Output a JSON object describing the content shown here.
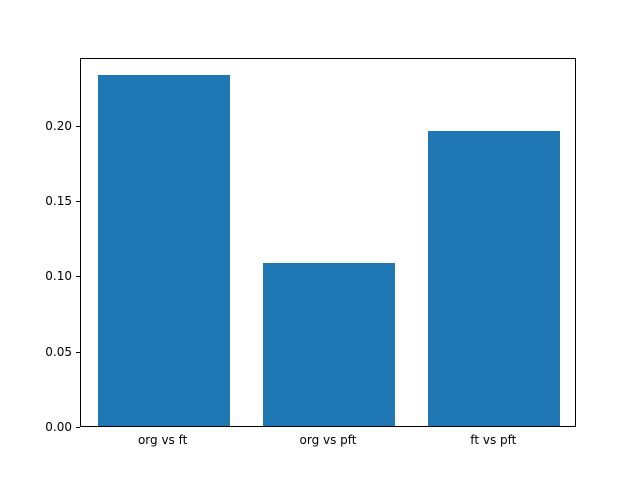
{
  "chart_data": {
    "type": "bar",
    "title": "",
    "xlabel": "",
    "ylabel": "",
    "categories": [
      "org vs ft",
      "org vs pft",
      "ft vs pft"
    ],
    "values": [
      0.233,
      0.108,
      0.196
    ],
    "ylim": [
      0,
      0.245
    ],
    "yticks": [
      0.0,
      0.05,
      0.1,
      0.15,
      0.2
    ],
    "ytick_labels": [
      "0.00",
      "0.05",
      "0.10",
      "0.15",
      "0.20"
    ],
    "bar_color": "#1f77b4",
    "grid": false,
    "legend": null,
    "bar_width_fraction": 0.8
  }
}
